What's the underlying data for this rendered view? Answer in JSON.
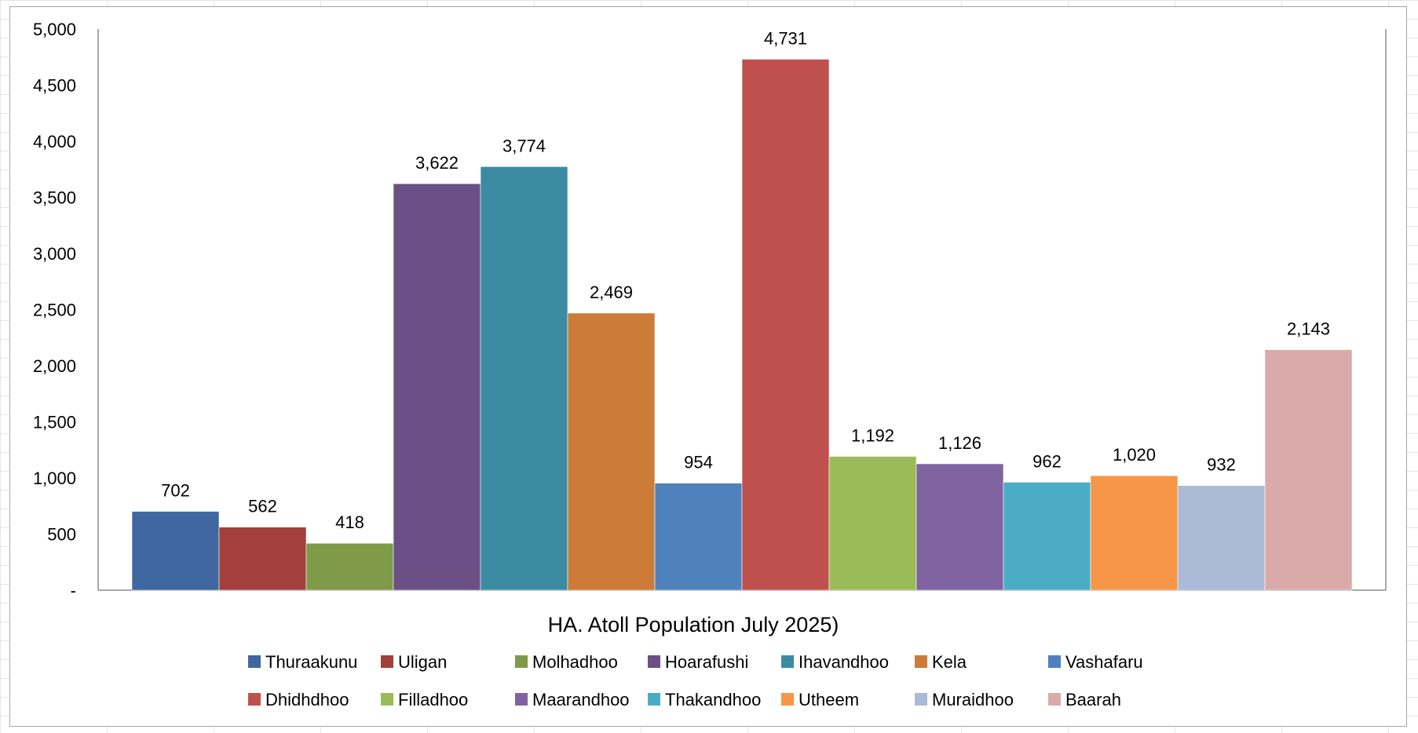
{
  "chart_data": {
    "type": "bar",
    "title": "HA. Atoll Population July 2025)",
    "xlabel": "",
    "ylabel": "",
    "ylim": [
      0,
      5000
    ],
    "yticks": [
      0,
      500,
      1000,
      1500,
      2000,
      2500,
      3000,
      3500,
      4000,
      4500,
      5000
    ],
    "ytick_labels": [
      "-",
      "500",
      "1,000",
      "1,500",
      "2,000",
      "2,500",
      "3,000",
      "3,500",
      "4,000",
      "4,500",
      "5,000"
    ],
    "grid": false,
    "legend_position": "bottom",
    "series": [
      {
        "name": "Thuraakunu",
        "value": 702,
        "label": "702",
        "color": "#4067a0"
      },
      {
        "name": "Uligan",
        "value": 562,
        "label": "562",
        "color": "#a3403d"
      },
      {
        "name": "Molhadhoo",
        "value": 418,
        "label": "418",
        "color": "#7f9a48"
      },
      {
        "name": "Hoarafushi",
        "value": 3622,
        "label": "3,622",
        "color": "#6a5085"
      },
      {
        "name": "Ihavandhoo",
        "value": 3774,
        "label": "3,774",
        "color": "#3b8ca3"
      },
      {
        "name": "Kela",
        "value": 2469,
        "label": "2,469",
        "color": "#cc7b38"
      },
      {
        "name": "Vashafaru",
        "value": 954,
        "label": "954",
        "color": "#4f81bd"
      },
      {
        "name": "Dhidhdhoo",
        "value": 4731,
        "label": "4,731",
        "color": "#c0504d"
      },
      {
        "name": "Filladhoo",
        "value": 1192,
        "label": "1,192",
        "color": "#9bbb59"
      },
      {
        "name": "Maarandhoo",
        "value": 1126,
        "label": "1,126",
        "color": "#8064a2"
      },
      {
        "name": "Thakandhoo",
        "value": 962,
        "label": "962",
        "color": "#4bacc6"
      },
      {
        "name": "Utheem",
        "value": 1020,
        "label": "1,020",
        "color": "#f79646"
      },
      {
        "name": "Muraidhoo",
        "value": 932,
        "label": "932",
        "color": "#aabad7"
      },
      {
        "name": "Baarah",
        "value": 2143,
        "label": "2,143",
        "color": "#d9aaa9"
      }
    ]
  }
}
